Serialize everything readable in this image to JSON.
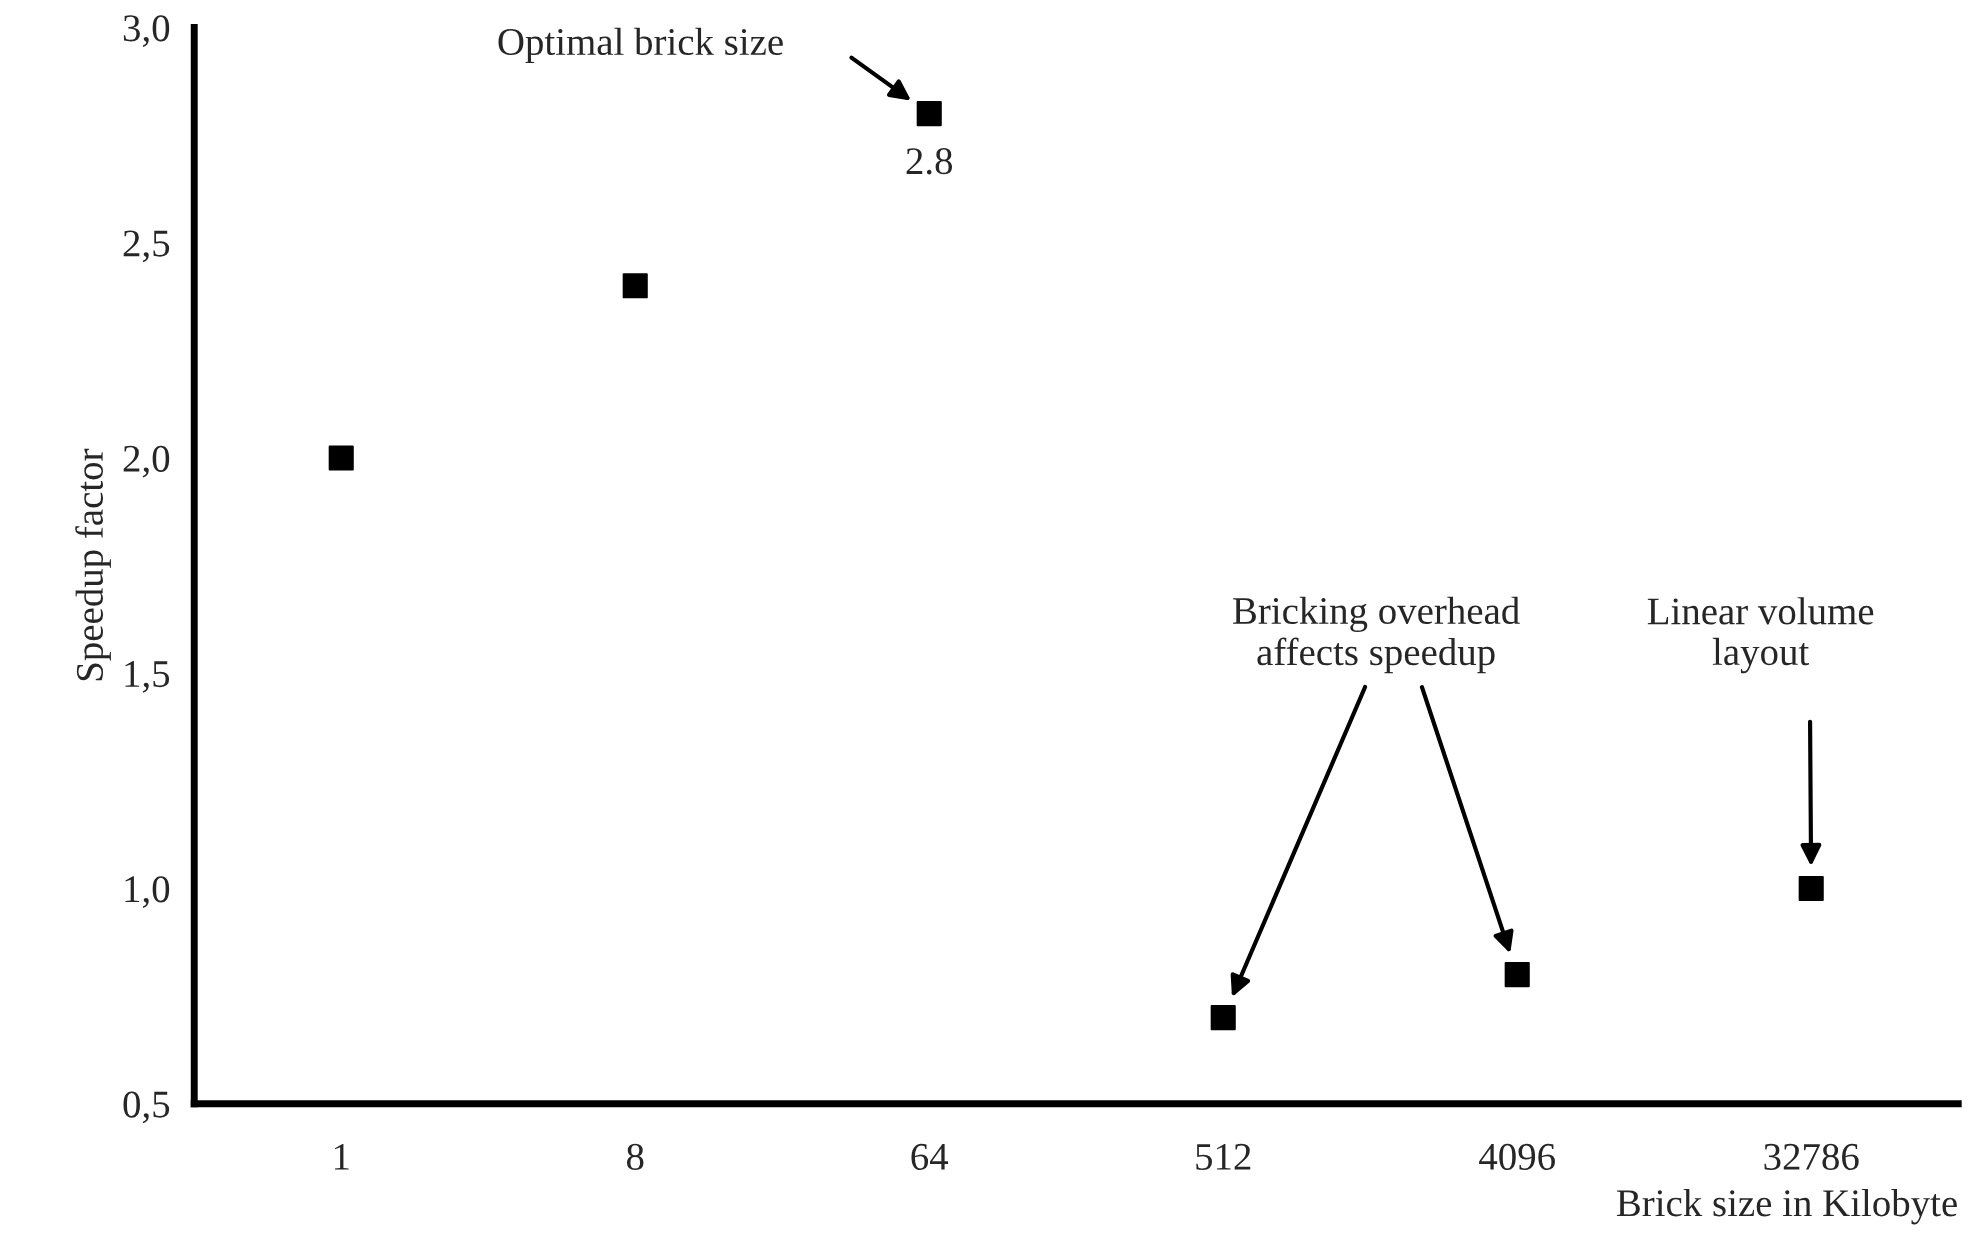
{
  "chart_data": {
    "type": "scatter",
    "xlabel": "Brick size in Kilobyte",
    "ylabel": "Speedup factor",
    "categories": [
      "1",
      "8",
      "64",
      "512",
      "4096",
      "32786"
    ],
    "values": [
      2.0,
      2.4,
      2.8,
      0.7,
      0.8,
      1.0
    ],
    "value_labels": [
      null,
      null,
      "2.8",
      null,
      null,
      null
    ],
    "color": "#000000",
    "marker": "square",
    "ylim": [
      0.5,
      3.0
    ],
    "yticks": [
      {
        "value": 0.5,
        "label": "0,5"
      },
      {
        "value": 1.0,
        "label": "1,0"
      },
      {
        "value": 1.5,
        "label": "1,5"
      },
      {
        "value": 2.0,
        "label": "2,0"
      },
      {
        "value": 2.5,
        "label": "2,5"
      },
      {
        "value": 3.0,
        "label": "3,0"
      }
    ],
    "annotations": [
      "Optimal brick size",
      "Bricking overhead\naffects speedup",
      "Linear volume\nlayout"
    ],
    "grid": false
  }
}
